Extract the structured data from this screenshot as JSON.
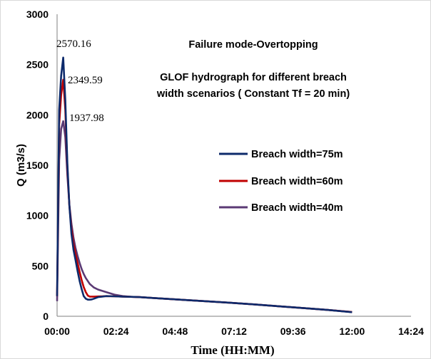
{
  "chart_data": {
    "type": "line",
    "title": "Failure mode-Overtopping",
    "subtitle_lines": [
      "GLOF hydrograph for different breach",
      "width scenarios ( Constant Tf = 20 min)"
    ],
    "xlabel": "Time (HH:MM)",
    "ylabel": "Q (m3/s)",
    "x_ticks": [
      "00:00",
      "02:24",
      "04:48",
      "07:12",
      "09:36",
      "12:00",
      "14:24"
    ],
    "y_ticks": [
      "0",
      "500",
      "1000",
      "1500",
      "2000",
      "2500",
      "3000"
    ],
    "xlim_minutes": [
      0,
      864
    ],
    "ylim": [
      0,
      3000
    ],
    "grid": false,
    "legend_position": "right-middle",
    "peak_labels": [
      "2570.16",
      "2349.59",
      "1937.98"
    ],
    "series": [
      {
        "name": "Breach width=75m",
        "color": "#0d2a6b",
        "x_minutes": [
          0,
          5,
          10,
          15,
          20,
          25,
          30,
          35,
          40,
          45,
          50,
          55,
          60,
          65,
          70,
          75,
          80,
          85,
          90,
          100,
          110,
          120,
          140,
          160,
          180,
          200,
          240,
          300,
          360,
          420,
          480,
          540,
          600,
          660,
          720
        ],
        "y": [
          200,
          2050,
          2390,
          2570.16,
          2150,
          1520,
          1100,
          820,
          660,
          560,
          450,
          350,
          270,
          200,
          175,
          165,
          165,
          168,
          175,
          190,
          195,
          200,
          198,
          195,
          193,
          190,
          180,
          165,
          150,
          135,
          118,
          100,
          82,
          63,
          40
        ]
      },
      {
        "name": "Breach width=60m",
        "color": "#c00000",
        "x_minutes": [
          0,
          5,
          10,
          15,
          20,
          25,
          30,
          35,
          40,
          45,
          50,
          55,
          60,
          65,
          70,
          75,
          80,
          90,
          100,
          110,
          120,
          140,
          160,
          180,
          200,
          240,
          300,
          360,
          420,
          480,
          540,
          600,
          660,
          720
        ],
        "y": [
          200,
          1900,
          2200,
          2349.59,
          2050,
          1480,
          1100,
          870,
          720,
          620,
          530,
          440,
          360,
          290,
          240,
          205,
          195,
          195,
          197,
          198,
          200,
          198,
          195,
          193,
          190,
          180,
          165,
          150,
          135,
          118,
          100,
          82,
          63,
          42
        ]
      },
      {
        "name": "Breach width=40m",
        "color": "#5b3a74",
        "x_minutes": [
          0,
          5,
          10,
          15,
          20,
          25,
          30,
          35,
          40,
          45,
          50,
          55,
          60,
          65,
          70,
          80,
          90,
          100,
          120,
          140,
          160,
          180,
          200,
          240,
          300,
          360,
          420,
          480,
          540,
          600,
          660,
          720
        ],
        "y": [
          150,
          1550,
          1860,
          1937.98,
          1780,
          1400,
          1110,
          920,
          780,
          680,
          600,
          530,
          470,
          420,
          380,
          320,
          285,
          265,
          240,
          215,
          200,
          193,
          190,
          180,
          165,
          150,
          135,
          118,
          100,
          82,
          63,
          42
        ]
      }
    ]
  }
}
